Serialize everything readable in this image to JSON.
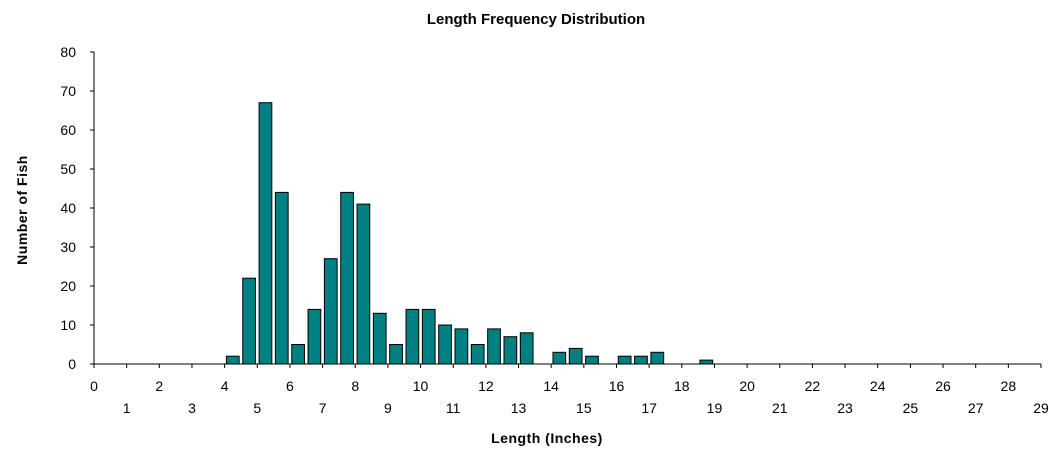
{
  "chart_data": {
    "type": "bar",
    "title": "Length Frequency Distribution",
    "xlabel": "Length (Inches)",
    "ylabel": "Number of Fish",
    "ylim": [
      0,
      80
    ],
    "yticks": [
      0,
      10,
      20,
      30,
      40,
      50,
      60,
      70,
      80
    ],
    "xlim": [
      0,
      29
    ],
    "xticks": [
      0,
      1,
      2,
      3,
      4,
      5,
      6,
      7,
      8,
      9,
      10,
      11,
      12,
      13,
      14,
      15,
      16,
      17,
      18,
      19,
      20,
      21,
      22,
      23,
      24,
      25,
      26,
      27,
      28,
      29
    ],
    "x": [
      4.0,
      4.5,
      5.0,
      5.5,
      6.0,
      6.5,
      7.0,
      7.5,
      8.0,
      8.5,
      9.0,
      9.5,
      10.0,
      10.5,
      11.0,
      11.5,
      12.0,
      12.5,
      13.0,
      13.5,
      14.0,
      14.5,
      15.0,
      15.5,
      16.0,
      16.5,
      17.0,
      17.5,
      18.0,
      18.5
    ],
    "values": [
      2,
      22,
      67,
      44,
      5,
      14,
      27,
      44,
      41,
      13,
      5,
      14,
      14,
      10,
      9,
      5,
      9,
      7,
      8,
      0,
      3,
      4,
      2,
      0,
      2,
      2,
      3,
      0,
      0,
      1
    ],
    "bar_color": "#008080",
    "grid": false,
    "legend": "none"
  }
}
